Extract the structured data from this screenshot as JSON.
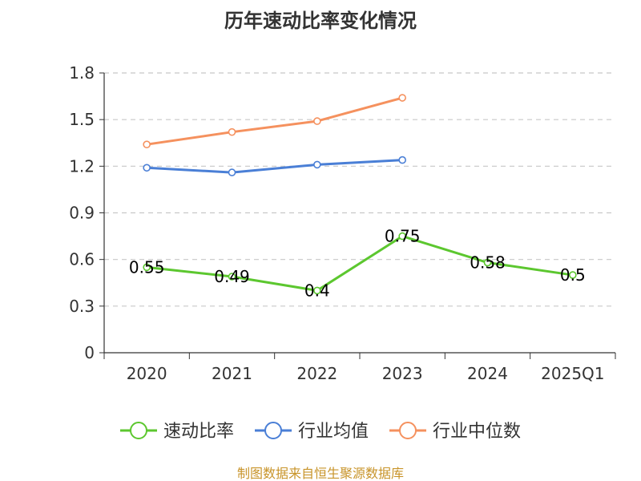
{
  "chart_data": {
    "type": "line",
    "title": "历年速动比率变化情况",
    "categories": [
      "2020",
      "2021",
      "2022",
      "2023",
      "2024",
      "2025Q1"
    ],
    "ylim": [
      0,
      1.8
    ],
    "yticks": [
      "0",
      "0.3",
      "0.6",
      "0.9",
      "1.2",
      "1.5",
      "1.8"
    ],
    "ytick_values": [
      0,
      0.3,
      0.6,
      0.9,
      1.2,
      1.5,
      1.8
    ],
    "grid": true,
    "legend_position": "bottom",
    "series": [
      {
        "name": "速动比率",
        "color": "#5cc72f",
        "values": [
          0.55,
          0.49,
          0.4,
          0.75,
          0.58,
          0.5
        ],
        "labels": [
          "0.55",
          "0.49",
          "0.4",
          "0.75",
          "0.58",
          "0.5"
        ]
      },
      {
        "name": "行业均值",
        "color": "#4a7fd6",
        "values": [
          1.19,
          1.16,
          1.21,
          1.24,
          null,
          null
        ]
      },
      {
        "name": "行业中位数",
        "color": "#f5915e",
        "values": [
          1.34,
          1.42,
          1.49,
          1.64,
          null,
          null
        ]
      }
    ],
    "source": "制图数据来自恒生聚源数据库",
    "source_color": "#c8942a"
  }
}
